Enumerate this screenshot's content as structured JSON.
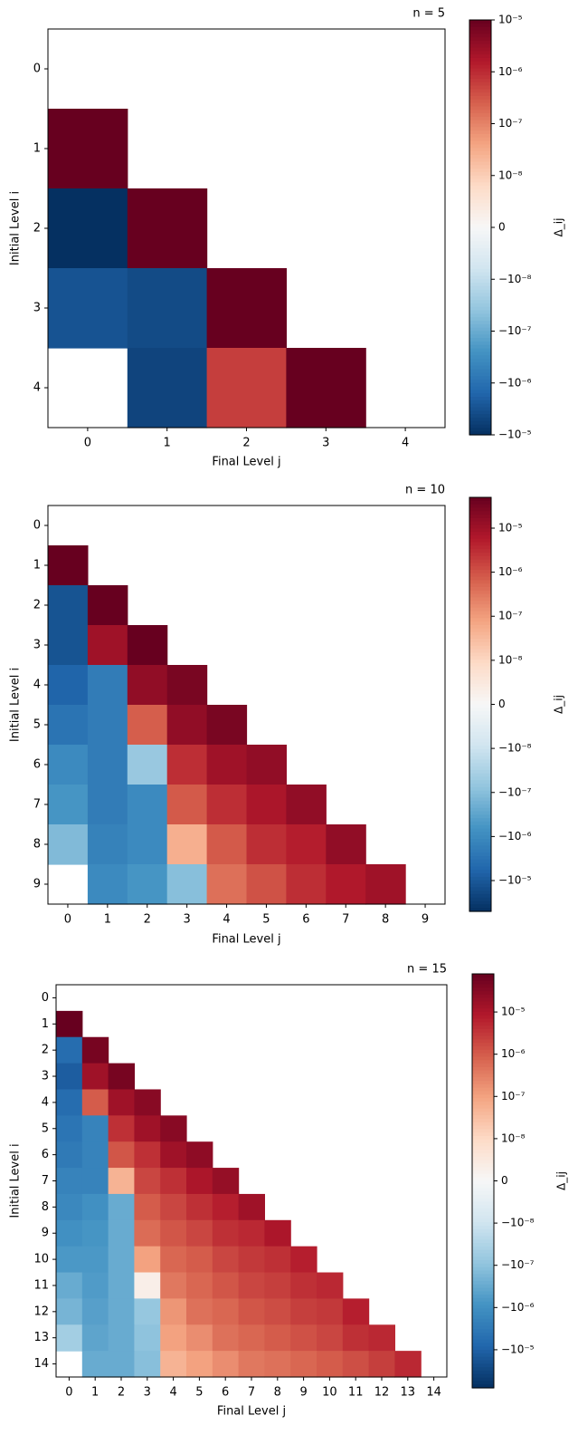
{
  "figure": {
    "colorbar_label": "Δ_ij",
    "colorbar_ticks": [
      "10⁻⁵",
      "10⁻⁶",
      "10⁻⁷",
      "10⁻⁸",
      "0",
      "−10⁻⁸",
      "−10⁻⁷",
      "−10⁻⁶",
      "−10⁻⁵"
    ],
    "colormap": "RdBu_r",
    "colors": {
      "dark_red": "#67001f",
      "red": "#b2182b",
      "mid_red": "#d6604d",
      "light_red": "#f4a582",
      "pale_red": "#fddbc7",
      "white": "#f7f7f7",
      "pale_blue": "#d1e5f0",
      "light_blue": "#92c5de",
      "mid_blue": "#4393c3",
      "blue": "#2166ac",
      "dark_blue": "#053061"
    }
  },
  "chart_data": [
    {
      "type": "heatmap",
      "title": "n = 5",
      "xlabel": "Final Level j",
      "ylabel": "Initial Level i",
      "x_ticks": [
        "0",
        "1",
        "2",
        "3",
        "4"
      ],
      "y_ticks": [
        "0",
        "1",
        "2",
        "3",
        "4"
      ],
      "scale": "symlog",
      "clim": [
        -1e-05,
        1e-05
      ],
      "matrix": [
        [
          null,
          null,
          null,
          null,
          null
        ],
        [
          1e-05,
          null,
          null,
          null,
          null
        ],
        [
          -1e-05,
          1e-05,
          null,
          null,
          null
        ],
        [
          -3e-06,
          -4e-06,
          1e-05,
          null,
          null
        ],
        [
          0,
          -5e-06,
          6e-07,
          1e-05,
          null
        ]
      ]
    },
    {
      "type": "heatmap",
      "title": "n = 10",
      "xlabel": "Final Level j",
      "ylabel": "Initial Level i",
      "x_ticks": [
        "0",
        "1",
        "2",
        "3",
        "4",
        "5",
        "6",
        "7",
        "8",
        "9"
      ],
      "y_ticks": [
        "0",
        "1",
        "2",
        "3",
        "4",
        "5",
        "6",
        "7",
        "8",
        "9"
      ],
      "scale": "symlog",
      "clim": [
        -5e-05,
        5e-05
      ],
      "matrix": [
        [
          null,
          null,
          null,
          null,
          null,
          null,
          null,
          null,
          null,
          null
        ],
        [
          5e-05,
          null,
          null,
          null,
          null,
          null,
          null,
          null,
          null,
          null
        ],
        [
          -1.2e-05,
          5e-05,
          null,
          null,
          null,
          null,
          null,
          null,
          null,
          null
        ],
        [
          -1.2e-05,
          1e-05,
          5e-05,
          null,
          null,
          null,
          null,
          null,
          null,
          null
        ],
        [
          -6e-06,
          -2e-06,
          1.5e-05,
          3e-05,
          null,
          null,
          null,
          null,
          null,
          null
        ],
        [
          -3e-06,
          -2e-06,
          7e-07,
          1.5e-05,
          3e-05,
          null,
          null,
          null,
          null,
          null
        ],
        [
          -1e-06,
          -2e-06,
          -6e-08,
          3e-06,
          1e-05,
          1.5e-05,
          null,
          null,
          null,
          null
        ],
        [
          -6e-07,
          -2e-06,
          -1e-06,
          8e-07,
          3e-06,
          7e-06,
          1.5e-05,
          null,
          null,
          null
        ],
        [
          -1.2e-07,
          -1.5e-06,
          -1e-06,
          5e-08,
          8e-07,
          3e-06,
          5e-06,
          1.5e-05,
          null,
          null
        ],
        [
          0,
          -1e-06,
          -6e-07,
          -1e-07,
          4e-07,
          1e-06,
          3e-06,
          6e-06,
          1e-05,
          null
        ]
      ]
    },
    {
      "type": "heatmap",
      "title": "n = 15",
      "xlabel": "Final Level j",
      "ylabel": "Initial Level i",
      "x_ticks": [
        "0",
        "1",
        "2",
        "3",
        "4",
        "5",
        "6",
        "7",
        "8",
        "9",
        "10",
        "11",
        "12",
        "13",
        "14"
      ],
      "y_ticks": [
        "0",
        "1",
        "2",
        "3",
        "4",
        "5",
        "6",
        "7",
        "8",
        "9",
        "10",
        "11",
        "12",
        "13",
        "14"
      ],
      "scale": "symlog",
      "clim": [
        -8e-05,
        8e-05
      ],
      "matrix": [
        [
          null,
          null,
          null,
          null,
          null,
          null,
          null,
          null,
          null,
          null,
          null,
          null,
          null,
          null,
          null
        ],
        [
          8e-05,
          null,
          null,
          null,
          null,
          null,
          null,
          null,
          null,
          null,
          null,
          null,
          null,
          null,
          null
        ],
        [
          -6e-06,
          5e-05,
          null,
          null,
          null,
          null,
          null,
          null,
          null,
          null,
          null,
          null,
          null,
          null,
          null
        ],
        [
          -1.2e-05,
          1.5e-05,
          5e-05,
          null,
          null,
          null,
          null,
          null,
          null,
          null,
          null,
          null,
          null,
          null,
          null
        ],
        [
          -6e-06,
          1e-06,
          1.5e-05,
          3e-05,
          null,
          null,
          null,
          null,
          null,
          null,
          null,
          null,
          null,
          null,
          null
        ],
        [
          -4e-06,
          -2e-06,
          4e-06,
          1.5e-05,
          3e-05,
          null,
          null,
          null,
          null,
          null,
          null,
          null,
          null,
          null,
          null
        ],
        [
          -3e-06,
          -2e-06,
          1.2e-06,
          4e-06,
          1.5e-05,
          2.5e-05,
          null,
          null,
          null,
          null,
          null,
          null,
          null,
          null,
          null
        ],
        [
          -2e-06,
          -2e-06,
          5e-08,
          2e-06,
          4e-06,
          1e-05,
          2e-05,
          null,
          null,
          null,
          null,
          null,
          null,
          null,
          null
        ],
        [
          -1.5e-06,
          -1e-06,
          -3e-07,
          1e-06,
          2e-06,
          4e-06,
          7e-06,
          1.5e-05,
          null,
          null,
          null,
          null,
          null,
          null,
          null
        ],
        [
          -1e-06,
          -8e-07,
          -3e-07,
          6e-07,
          1.2e-06,
          2e-06,
          4e-06,
          5e-06,
          1e-05,
          null,
          null,
          null,
          null,
          null,
          null
        ],
        [
          -7e-07,
          -7e-07,
          -3e-07,
          1e-07,
          7e-07,
          1e-06,
          2e-06,
          3e-06,
          4e-06,
          7e-06,
          null,
          null,
          null,
          null,
          null
        ],
        [
          -3e-07,
          -6e-07,
          -3e-07,
          3e-09,
          4e-07,
          7e-07,
          1.2e-06,
          2e-06,
          2.5e-06,
          4e-06,
          5e-06,
          null,
          null,
          null,
          null
        ],
        [
          -2e-07,
          -5e-07,
          -3e-07,
          -8e-08,
          1.5e-07,
          5e-07,
          7e-07,
          1.2e-06,
          1.6e-06,
          2.5e-06,
          3e-06,
          7e-06,
          null,
          null,
          null
        ],
        [
          -5e-08,
          -4e-07,
          -3e-07,
          -1e-07,
          1e-07,
          2e-07,
          5e-07,
          7e-07,
          1e-06,
          1.4e-06,
          2e-06,
          4e-06,
          5e-06,
          null,
          null
        ],
        [
          0,
          -3e-07,
          -3e-07,
          -1.2e-07,
          5e-08,
          1e-07,
          2e-07,
          4e-07,
          5e-07,
          7e-07,
          1e-06,
          1.5e-06,
          2.5e-06,
          5e-06,
          null
        ]
      ]
    }
  ]
}
